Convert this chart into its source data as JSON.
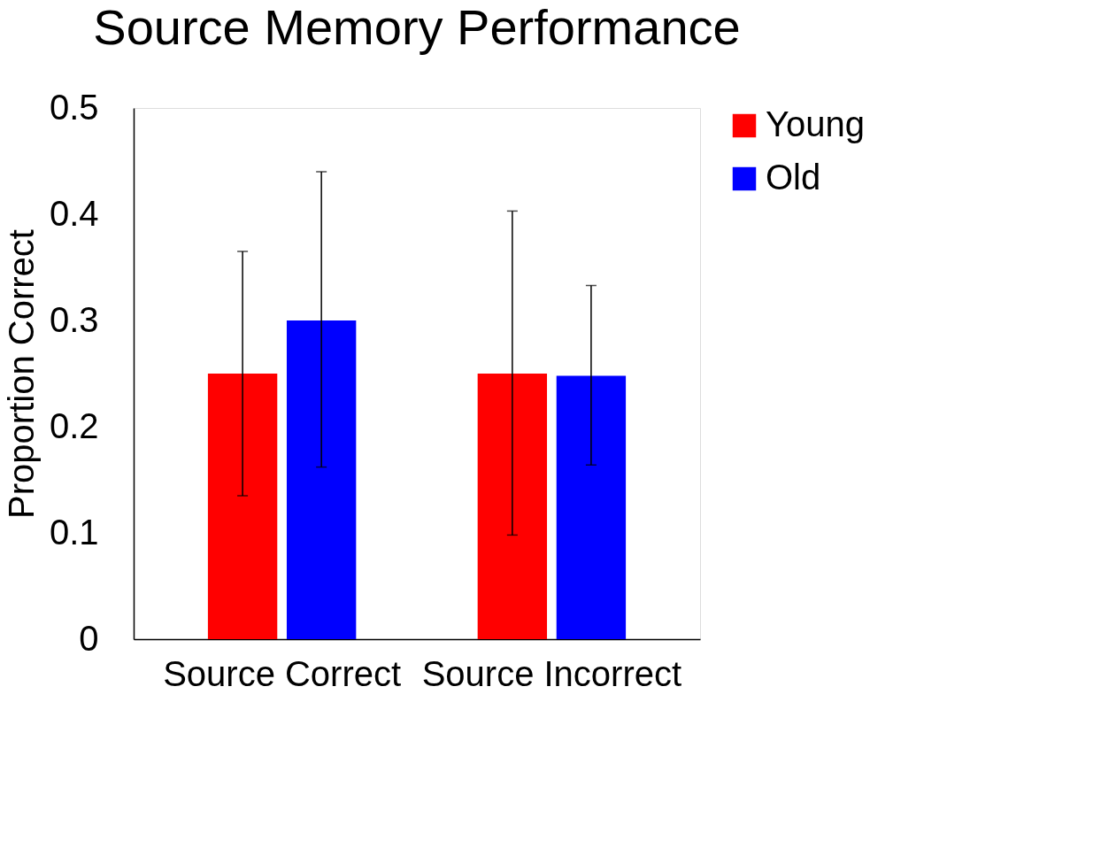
{
  "chart_data": {
    "type": "bar",
    "title": "Source Memory Performance",
    "ylabel": "Proportion Correct",
    "categories": [
      "Source Correct",
      "Source Incorrect"
    ],
    "series": [
      {
        "name": "Young",
        "color": "#ff0000",
        "values": [
          0.25,
          0.25
        ],
        "errors": [
          [
            0.135,
            0.365
          ],
          [
            0.098,
            0.403
          ]
        ]
      },
      {
        "name": "Old",
        "color": "#0000ff",
        "values": [
          0.3,
          0.248
        ],
        "errors": [
          [
            0.162,
            0.44
          ],
          [
            0.164,
            0.333
          ]
        ]
      }
    ],
    "ylim": [
      0,
      0.5
    ],
    "yticks": [
      0,
      0.1,
      0.2,
      0.3,
      0.4,
      0.5
    ],
    "grid": false,
    "legend": "right"
  }
}
